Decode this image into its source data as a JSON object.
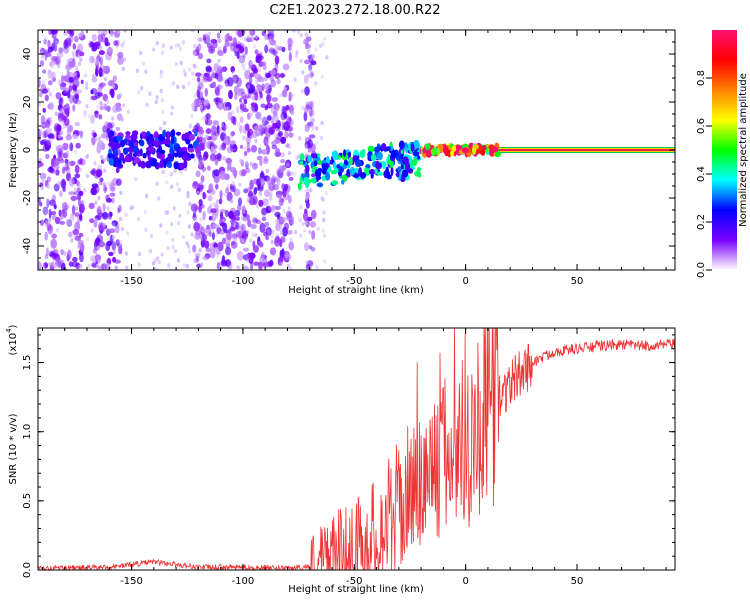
{
  "title": "C2E1.2023.272.18.00.R22",
  "chart_data": [
    {
      "type": "heatmap",
      "xlabel": "Height of straight line (km)",
      "ylabel": "Frequency (Hz)",
      "xlim": [
        -192,
        94
      ],
      "ylim": [
        -50,
        50
      ],
      "xticks": [
        "-150",
        "-100",
        "-50",
        "0",
        "50"
      ],
      "yticks": [
        "-40",
        "-20",
        "0",
        "20",
        "40"
      ],
      "colorbar": {
        "label": "Normalized spectral amplitude",
        "range": [
          0,
          1
        ],
        "ticks": [
          "0.0",
          "0.2",
          "0.4",
          "0.6",
          "0.8"
        ],
        "colors": [
          "#ffffff",
          "#7a00ff",
          "#0000ff",
          "#00ffff",
          "#00ff00",
          "#ffff00",
          "#ff8000",
          "#ff0000",
          "#ff1070"
        ]
      },
      "features": {
        "noise_regions_km": [
          [
            -192,
            -172
          ],
          [
            -168,
            -155
          ],
          [
            -122,
            -78
          ],
          [
            -72,
            -68
          ]
        ],
        "trace_segments": [
          {
            "x": [
              -160,
              -120
            ],
            "freq": 0,
            "amplitude": 0.25
          },
          {
            "x": [
              -75,
              -20
            ],
            "freq": -4,
            "amplitude": 0.4
          },
          {
            "x": [
              -20,
              15
            ],
            "freq": 0,
            "amplitude": 0.95
          },
          {
            "x": [
              15,
              94
            ],
            "freq": 0,
            "amplitude": 1.0
          }
        ]
      }
    },
    {
      "type": "line",
      "xlabel": "Height of straight line (km)",
      "ylabel": "SNR (10 * v/v)",
      "yunit_label": "(x10",
      "yunit_exp": "4",
      "xlim": [
        -192,
        94
      ],
      "ylim": [
        0,
        1.75
      ],
      "xticks": [
        "-150",
        "-100",
        "-50",
        "0",
        "50"
      ],
      "yticks": [
        "0.0",
        "0.5",
        "1.0",
        "1.5"
      ],
      "color": "#ee3333",
      "x": [
        -192,
        -160,
        -140,
        -120,
        -100,
        -80,
        -68,
        -60,
        -50,
        -40,
        -30,
        -20,
        -10,
        0,
        10,
        20,
        30,
        40,
        50,
        60,
        70,
        80,
        94
      ],
      "y": [
        0.01,
        0.02,
        0.06,
        0.02,
        0.02,
        0.01,
        0.03,
        0.1,
        0.15,
        0.25,
        0.45,
        0.65,
        0.8,
        0.95,
        1.15,
        1.35,
        1.5,
        1.58,
        1.6,
        1.62,
        1.63,
        1.62,
        1.63
      ]
    }
  ]
}
